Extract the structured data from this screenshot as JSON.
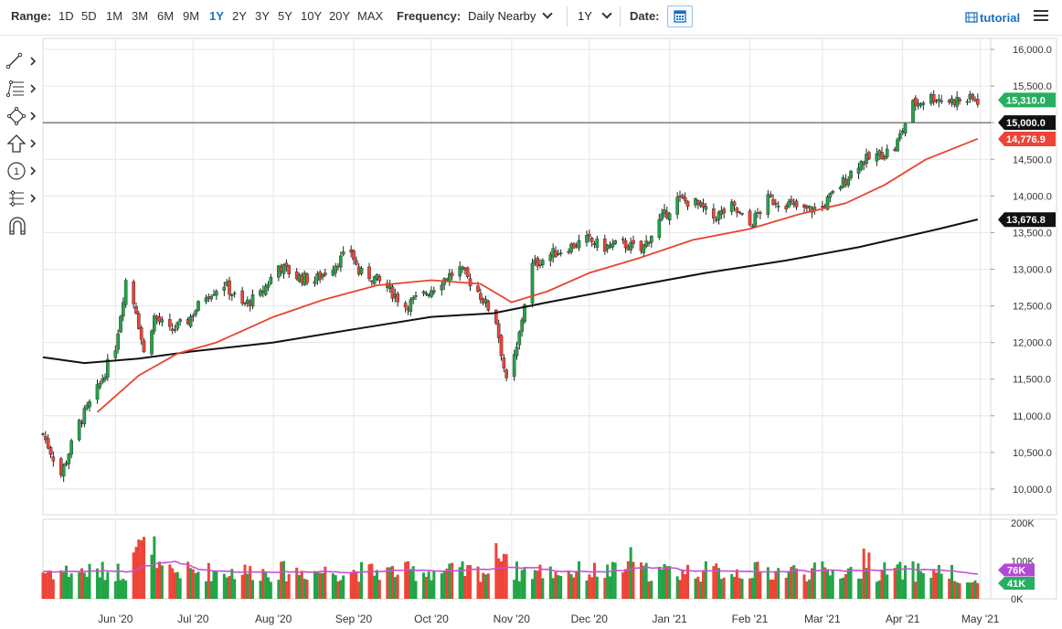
{
  "toolbar": {
    "range_label": "Range:",
    "ranges": [
      "1D",
      "5D",
      "1M",
      "3M",
      "6M",
      "9M",
      "1Y",
      "2Y",
      "3Y",
      "5Y",
      "10Y",
      "20Y",
      "MAX"
    ],
    "active_range": "1Y",
    "frequency_label": "Frequency:",
    "frequency_value": "Daily Nearby",
    "period_value": "1Y",
    "date_label": "Date:",
    "tutorial_label": "tutorial"
  },
  "tools": [
    {
      "name": "line-draw-tool-icon"
    },
    {
      "name": "fib-tool-icon"
    },
    {
      "name": "shapes-tool-icon"
    },
    {
      "name": "arrow-tool-icon"
    },
    {
      "name": "annotation-tool-icon",
      "text": "1"
    },
    {
      "name": "measure-tool-icon"
    },
    {
      "name": "magnet-icon"
    }
  ],
  "colors": {
    "up": "#22a447",
    "down": "#ee4438",
    "ma_fast": "#e84430",
    "ma_slow": "#111111",
    "volume_avg": "#c94fd8",
    "last_price_bg": "#27ae60",
    "level_bg": "#111111",
    "ma_fast_bg": "#ee4438",
    "vol_avg_bg": "#b249d6",
    "vol_bg": "#27ae60"
  },
  "chart_data": {
    "type": "candlestick",
    "price_axis_ticks": [
      "16,000.0",
      "15,500.0",
      "15,000.0",
      "14,500.0",
      "14,000.0",
      "13,500.0",
      "13,000.0",
      "12,500.0",
      "12,000.0",
      "11,500.0",
      "11,000.0",
      "10,500.0",
      "10,000.0"
    ],
    "price_axis_values": [
      16000,
      15500,
      15000,
      14500,
      14000,
      13500,
      13000,
      12500,
      12000,
      11500,
      11000,
      10500,
      10000
    ],
    "ylim": [
      9650,
      16150
    ],
    "x_ticks": [
      "Jun '20",
      "Jul '20",
      "Aug '20",
      "Sep '20",
      "Oct '20",
      "Nov '20",
      "Dec '20",
      "Jan '21",
      "Feb '21",
      "Mar '21",
      "Apr '21",
      "May '21"
    ],
    "x_tick_dates": [
      "2020-06-01",
      "2020-07-01",
      "2020-08-01",
      "2020-09-01",
      "2020-10-01",
      "2020-11-01",
      "2020-12-01",
      "2021-01-01",
      "2021-02-01",
      "2021-03-01",
      "2021-04-01",
      "2021-05-01"
    ],
    "x_range": [
      "2020-05-04",
      "2021-05-05"
    ],
    "horizontal_level": {
      "value": 15000,
      "label": "15,000.0"
    },
    "last_price": {
      "value": 15310,
      "label": "15,310.0"
    },
    "ma_fast_last": {
      "value": 14776.9,
      "label": "14,776.9"
    },
    "ma_slow_last": {
      "value": 13676.8,
      "label": "13,676.8"
    },
    "close_series": {
      "dates": [
        "2020-05-04",
        "2020-05-11",
        "2020-05-18",
        "2020-05-25",
        "2020-06-01",
        "2020-06-05",
        "2020-06-09",
        "2020-06-12",
        "2020-06-16",
        "2020-06-22",
        "2020-06-29",
        "2020-07-06",
        "2020-07-13",
        "2020-07-20",
        "2020-07-27",
        "2020-08-03",
        "2020-08-10",
        "2020-08-17",
        "2020-08-24",
        "2020-08-31",
        "2020-09-03",
        "2020-09-08",
        "2020-09-14",
        "2020-09-21",
        "2020-09-28",
        "2020-10-05",
        "2020-10-12",
        "2020-10-19",
        "2020-10-26",
        "2020-10-30",
        "2020-11-03",
        "2020-11-06",
        "2020-11-09",
        "2020-11-16",
        "2020-11-23",
        "2020-11-30",
        "2020-12-07",
        "2020-12-14",
        "2020-12-21",
        "2020-12-28",
        "2021-01-04",
        "2021-01-11",
        "2021-01-18",
        "2021-01-25",
        "2021-02-01",
        "2021-02-08",
        "2021-02-15",
        "2021-02-22",
        "2021-03-01",
        "2021-03-08",
        "2021-03-15",
        "2021-03-22",
        "2021-03-29",
        "2021-04-05",
        "2021-04-12",
        "2021-04-19",
        "2021-04-26"
      ],
      "values": [
        10750,
        10200,
        10900,
        11350,
        11950,
        12850,
        12450,
        11850,
        12350,
        12150,
        12300,
        12650,
        12800,
        12500,
        12650,
        13050,
        12900,
        12850,
        13050,
        13250,
        12950,
        12900,
        12750,
        12500,
        12650,
        12850,
        13000,
        12700,
        12300,
        11450,
        11900,
        12550,
        13050,
        13200,
        13300,
        13400,
        13300,
        13350,
        13250,
        13650,
        13950,
        13900,
        13700,
        13850,
        13600,
        13950,
        13900,
        13800,
        13850,
        14150,
        14450,
        14550,
        14650,
        15250,
        15350,
        15300,
        15310
      ]
    },
    "ma_fast": {
      "dates": [
        "2020-05-25",
        "2020-06-10",
        "2020-06-25",
        "2020-07-10",
        "2020-08-01",
        "2020-08-20",
        "2020-09-10",
        "2020-10-01",
        "2020-10-20",
        "2020-11-01",
        "2020-11-15",
        "2020-12-01",
        "2020-12-20",
        "2021-01-10",
        "2021-02-01",
        "2021-02-20",
        "2021-03-10",
        "2021-03-25",
        "2021-04-10",
        "2021-04-30"
      ],
      "values": [
        11050,
        11550,
        11850,
        12000,
        12350,
        12580,
        12780,
        12850,
        12800,
        12550,
        12700,
        12950,
        13150,
        13400,
        13550,
        13750,
        13900,
        14150,
        14500,
        14780
      ]
    },
    "ma_slow": {
      "dates": [
        "2020-05-04",
        "2020-05-20",
        "2020-06-10",
        "2020-07-01",
        "2020-08-01",
        "2020-09-01",
        "2020-10-01",
        "2020-10-25",
        "2020-11-15",
        "2020-12-15",
        "2021-01-15",
        "2021-02-15",
        "2021-03-15",
        "2021-04-15",
        "2021-04-30"
      ],
      "values": [
        11800,
        11720,
        11780,
        11880,
        12000,
        12180,
        12350,
        12400,
        12550,
        12750,
        12950,
        13120,
        13300,
        13550,
        13680
      ]
    },
    "volume": {
      "axis_ticks": [
        "200K",
        "100K",
        "0K"
      ],
      "axis_values": [
        200000,
        100000,
        0
      ],
      "ylim": [
        0,
        210000
      ],
      "average_label": "76K",
      "average_value": 76000,
      "last_label": "41K",
      "last_value": 41000
    }
  }
}
